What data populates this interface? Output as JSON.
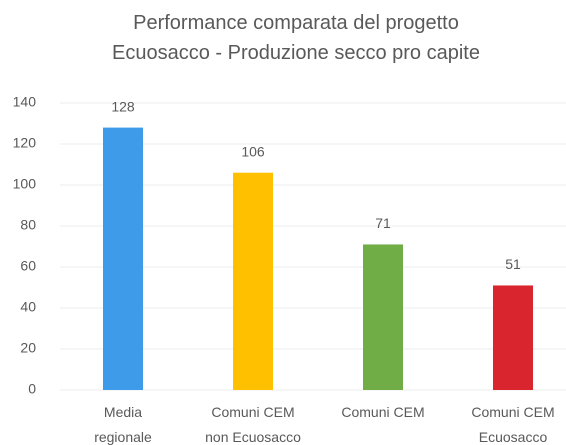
{
  "chart_data": {
    "type": "bar",
    "title": "Performance comparata del progetto\nEcuosacco - Produzione secco pro capite",
    "categories": [
      "Media\nregionale",
      "Comuni CEM\nnon Ecuosacco",
      "Comuni CEM",
      "Comuni CEM\nEcuosacco"
    ],
    "values": [
      128,
      106,
      71,
      51
    ],
    "colors": [
      "#3d9be9",
      "#ffc000",
      "#70ad47",
      "#d9262e"
    ],
    "ylim": [
      0,
      140
    ],
    "yticks": [
      0,
      20,
      40,
      60,
      80,
      100,
      120,
      140
    ],
    "grid": true
  }
}
